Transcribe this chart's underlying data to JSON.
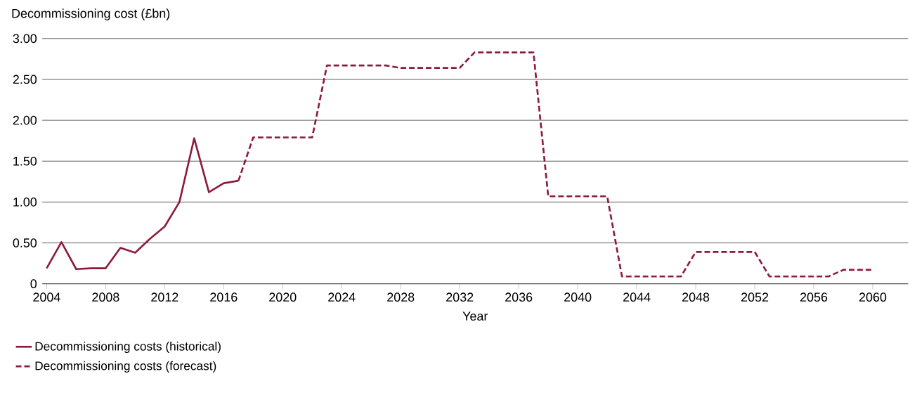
{
  "chart_data": {
    "type": "line",
    "ylabel": "Decommissioning cost (£bn)",
    "xlabel": "Year",
    "series": [
      {
        "name": "Decommissioning costs (historical)",
        "color": "#8c1c3c",
        "line_style": "solid",
        "x": [
          2004,
          2005,
          2006,
          2007,
          2008,
          2009,
          2010,
          2011,
          2012,
          2013,
          2014,
          2015,
          2016,
          2017
        ],
        "values": [
          0.19,
          0.51,
          0.18,
          0.19,
          0.19,
          0.44,
          0.38,
          0.55,
          0.7,
          1.0,
          1.78,
          1.12,
          1.23,
          1.26
        ]
      },
      {
        "name": "Decommissioning costs (forecast)",
        "color": "#8c1c3c",
        "line_style": "dashed",
        "x": [
          2017,
          2018,
          2019,
          2020,
          2021,
          2022,
          2023,
          2024,
          2025,
          2026,
          2027,
          2028,
          2029,
          2030,
          2031,
          2032,
          2033,
          2034,
          2035,
          2036,
          2037,
          2038,
          2039,
          2040,
          2041,
          2042,
          2043,
          2044,
          2045,
          2046,
          2047,
          2048,
          2049,
          2050,
          2051,
          2052,
          2053,
          2054,
          2055,
          2056,
          2057,
          2058,
          2059,
          2060
        ],
        "values": [
          1.26,
          1.79,
          1.79,
          1.79,
          1.79,
          1.79,
          2.67,
          2.67,
          2.67,
          2.67,
          2.67,
          2.64,
          2.64,
          2.64,
          2.64,
          2.64,
          2.83,
          2.83,
          2.83,
          2.83,
          2.83,
          1.07,
          1.07,
          1.07,
          1.07,
          1.07,
          0.09,
          0.09,
          0.09,
          0.09,
          0.09,
          0.39,
          0.39,
          0.39,
          0.39,
          0.39,
          0.09,
          0.09,
          0.09,
          0.09,
          0.09,
          0.17,
          0.17,
          0.17
        ]
      }
    ],
    "xlim": [
      2003.7,
      2062.4
    ],
    "ylim": [
      0,
      3
    ],
    "xticks": [
      2004,
      2008,
      2012,
      2016,
      2020,
      2024,
      2028,
      2032,
      2036,
      2040,
      2044,
      2048,
      2052,
      2056,
      2060
    ],
    "yticks": [
      0,
      {
        "value": 0.5,
        "label": "0.50"
      },
      {
        "value": 1,
        "label": "1.00"
      },
      {
        "value": 1.5,
        "label": "1.50"
      },
      {
        "value": 2,
        "label": "2.00"
      },
      {
        "value": 2.5,
        "label": "2.50"
      },
      {
        "value": 3,
        "label": "3.00"
      }
    ],
    "grid": "y",
    "legend": "bottom left",
    "marker": "none"
  }
}
